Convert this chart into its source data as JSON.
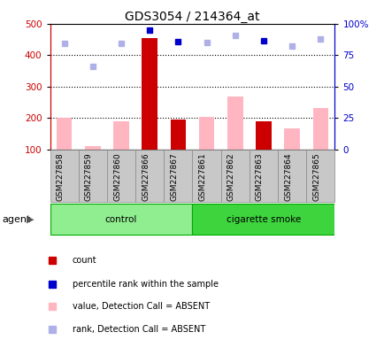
{
  "title": "GDS3054 / 214364_at",
  "samples": [
    "GSM227858",
    "GSM227859",
    "GSM227860",
    "GSM227866",
    "GSM227867",
    "GSM227861",
    "GSM227862",
    "GSM227863",
    "GSM227864",
    "GSM227865"
  ],
  "count_values": [
    null,
    null,
    null,
    455,
    195,
    null,
    null,
    190,
    null,
    null
  ],
  "count_absent_values": [
    200,
    110,
    190,
    null,
    null,
    203,
    270,
    null,
    168,
    233
  ],
  "rank_present_values": [
    null,
    null,
    null,
    480,
    443,
    null,
    null,
    447,
    null,
    null
  ],
  "rank_absent_values": [
    438,
    365,
    438,
    null,
    null,
    440,
    464,
    null,
    430,
    452
  ],
  "ylim_left": [
    100,
    500
  ],
  "ylim_right": [
    0,
    100
  ],
  "yticks_left": [
    100,
    200,
    300,
    400,
    500
  ],
  "ytick_labels_right": [
    "0",
    "25",
    "50",
    "75",
    "100%"
  ],
  "yticks_right": [
    0,
    25,
    50,
    75,
    100
  ],
  "groups": [
    {
      "label": "control",
      "indices": [
        0,
        1,
        2,
        3,
        4
      ],
      "color": "#90EE90",
      "border": "#00aa00"
    },
    {
      "label": "cigarette smoke",
      "indices": [
        5,
        6,
        7,
        8,
        9
      ],
      "color": "#3ED43E",
      "border": "#00aa00"
    }
  ],
  "group_label": "agent",
  "bar_width": 0.55,
  "count_color": "#cc0000",
  "count_absent_color": "#FFB6C1",
  "rank_present_color": "#0000cc",
  "rank_absent_color": "#b0b0e8",
  "bg_color": "#c8c8c8",
  "grid_color": "#000000",
  "legend_items": [
    {
      "label": "count",
      "color": "#cc0000"
    },
    {
      "label": "percentile rank within the sample",
      "color": "#0000cc"
    },
    {
      "label": "value, Detection Call = ABSENT",
      "color": "#FFB6C1"
    },
    {
      "label": "rank, Detection Call = ABSENT",
      "color": "#b0b0e8"
    }
  ]
}
